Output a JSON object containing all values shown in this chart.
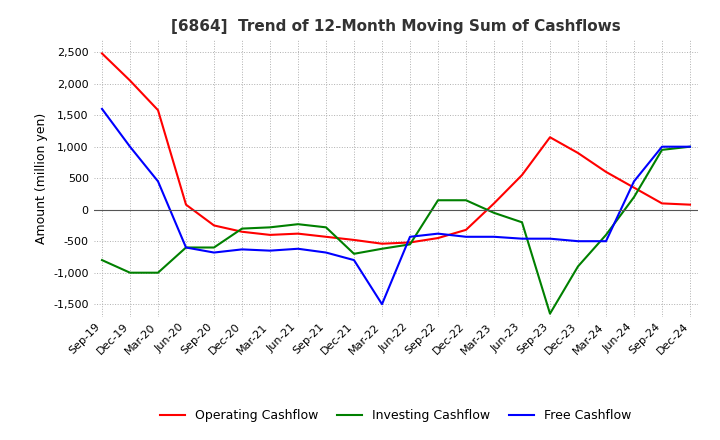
{
  "title": "[6864]  Trend of 12-Month Moving Sum of Cashflows",
  "ylabel": "Amount (million yen)",
  "x_labels": [
    "Sep-19",
    "Dec-19",
    "Mar-20",
    "Jun-20",
    "Sep-20",
    "Dec-20",
    "Mar-21",
    "Jun-21",
    "Sep-21",
    "Dec-21",
    "Mar-22",
    "Jun-22",
    "Sep-22",
    "Dec-22",
    "Mar-23",
    "Jun-23",
    "Sep-23",
    "Dec-23",
    "Mar-24",
    "Jun-24",
    "Sep-24",
    "Dec-24"
  ],
  "operating_cashflow": [
    2480,
    2050,
    1580,
    80,
    -250,
    -350,
    -400,
    -380,
    -430,
    -480,
    -540,
    -520,
    -450,
    -320,
    100,
    550,
    1150,
    900,
    600,
    350,
    100,
    80
  ],
  "investing_cashflow": [
    -800,
    -1000,
    -1000,
    -600,
    -600,
    -300,
    -280,
    -230,
    -280,
    -700,
    -620,
    -550,
    150,
    150,
    -50,
    -200,
    -1650,
    -900,
    -400,
    200,
    950,
    1000
  ],
  "free_cashflow": [
    1600,
    1000,
    450,
    -600,
    -680,
    -630,
    -650,
    -620,
    -680,
    -800,
    -1500,
    -430,
    -380,
    -430,
    -430,
    -460,
    -460,
    -500,
    -500,
    450,
    1000,
    1000
  ],
  "operating_color": "#ff0000",
  "investing_color": "#008000",
  "free_color": "#0000ff",
  "ylim": [
    -1700,
    2700
  ],
  "yticks": [
    -1500,
    -1000,
    -500,
    0,
    500,
    1000,
    1500,
    2000,
    2500
  ],
  "background_color": "#ffffff",
  "grid_color": "#b0b0b0",
  "title_fontsize": 11,
  "axis_fontsize": 9,
  "tick_fontsize": 8,
  "legend_fontsize": 9
}
